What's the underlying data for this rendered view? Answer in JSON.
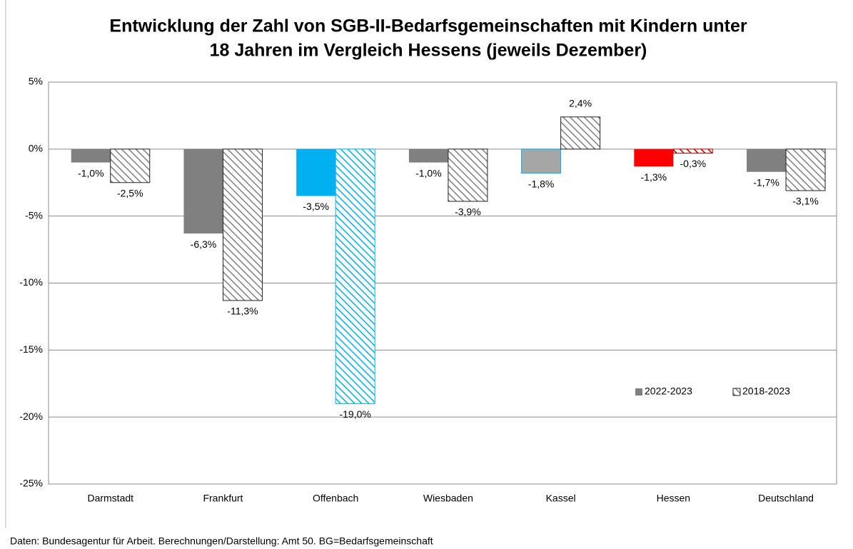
{
  "chart_data": {
    "type": "bar",
    "title": [
      "Entwicklung der Zahl von SGB-II-Bedarfsgemeinschaften mit Kindern unter",
      "18 Jahren im Vergleich Hessens (jeweils Dezember)"
    ],
    "categories": [
      "Darmstadt",
      "Frankfurt",
      "Offenbach",
      "Wiesbaden",
      "Kassel",
      "Hessen",
      "Deutschland"
    ],
    "series": [
      {
        "name": "2022-2023",
        "color": "#808080",
        "pattern": "solid",
        "point_colors": [
          "#808080",
          "#808080",
          "#00b0f0",
          "#808080",
          "#a6a6a6",
          "#ff0000",
          "#808080"
        ],
        "values": [
          -1.0,
          -6.3,
          -3.5,
          -1.0,
          -1.8,
          -1.3,
          -1.7
        ],
        "value_labels": [
          "-1,0%",
          "-6,3%",
          "-3,5%",
          "-1,0%",
          "-1,8%",
          "-1,3%",
          "-1,7%"
        ]
      },
      {
        "name": "2018-2023",
        "color": "#7f7f7f",
        "pattern": "hatch",
        "point_colors": [
          "#7f7f7f",
          "#7f7f7f",
          "#00b0f0",
          "#7f7f7f",
          "#7f7f7f",
          "#c00000",
          "#7f7f7f"
        ],
        "values": [
          -2.5,
          -11.3,
          -19.0,
          -3.9,
          2.4,
          -0.3,
          -3.1
        ],
        "value_labels": [
          "-2,5%",
          "-11,3%",
          "-19,0%",
          "-3,9%",
          "2,4%",
          "-0,3%",
          "-3,1%"
        ]
      }
    ],
    "ylim": [
      -25,
      5
    ],
    "yticks": [
      {
        "value": 5,
        "label": "5%"
      },
      {
        "value": 0,
        "label": "0%"
      },
      {
        "value": -5,
        "label": "-5%"
      },
      {
        "value": -10,
        "label": "-10%"
      },
      {
        "value": -15,
        "label": "-15%"
      },
      {
        "value": -20,
        "label": "-20%"
      },
      {
        "value": -25,
        "label": "-25%"
      }
    ],
    "grid": true,
    "legend": "right",
    "source": "Daten: Bundesagentur für Arbeit. Berechnungen/Darstellung:  Amt 50. BG=Bedarfsgemeinschaft"
  }
}
